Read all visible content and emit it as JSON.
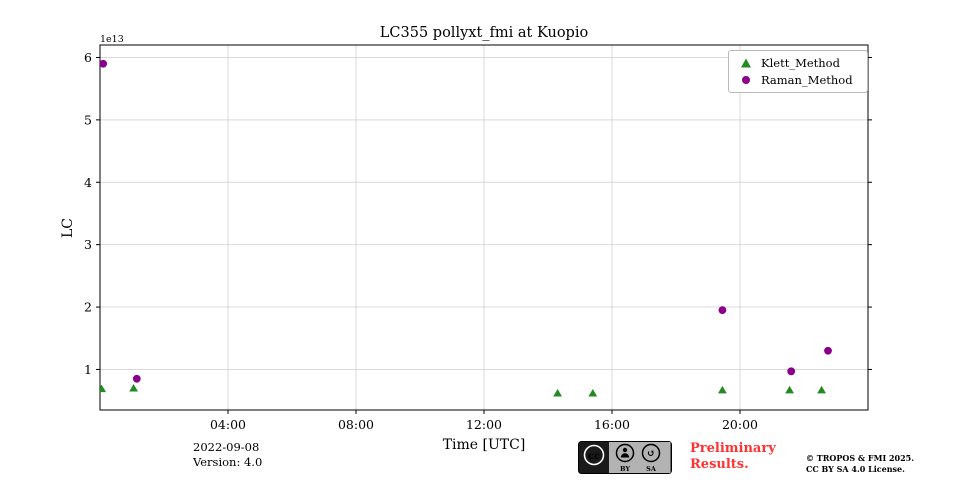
{
  "chart_data": {
    "type": "scatter",
    "title": "LC355 pollyxt_fmi at Kuopio",
    "xlabel": "Time [UTC]",
    "ylabel": "LC",
    "y_offset_label": "1e13",
    "grid": true,
    "legend_position": "upper right",
    "xlim_hours": [
      0,
      24
    ],
    "ylim": [
      0.35,
      6.2
    ],
    "x_ticks": [
      {
        "hour": 4,
        "label": "04:00"
      },
      {
        "hour": 8,
        "label": "08:00"
      },
      {
        "hour": 12,
        "label": "12:00"
      },
      {
        "hour": 16,
        "label": "16:00"
      },
      {
        "hour": 20,
        "label": "20:00"
      }
    ],
    "y_ticks": [
      1,
      2,
      3,
      4,
      5,
      6
    ],
    "series": [
      {
        "name": "Klett_Method",
        "marker": "triangle",
        "color": "#228B22",
        "points": [
          [
            0.05,
            0.69
          ],
          [
            1.05,
            0.7
          ],
          [
            14.3,
            0.62
          ],
          [
            15.4,
            0.62
          ],
          [
            19.45,
            0.67
          ],
          [
            21.55,
            0.67
          ],
          [
            22.55,
            0.67
          ]
        ]
      },
      {
        "name": "Raman_Method",
        "marker": "circle",
        "color": "#8B008B",
        "points": [
          [
            0.1,
            5.9
          ],
          [
            1.15,
            0.85
          ],
          [
            19.45,
            1.95
          ],
          [
            21.6,
            0.97
          ],
          [
            22.75,
            1.3
          ]
        ]
      }
    ]
  },
  "footer": {
    "date": "2022-09-08",
    "version": "Version: 4.0",
    "preliminary_line1": "Preliminary",
    "preliminary_line2": "Results.",
    "copyright_line1": "© TROPOS & FMI 2025.",
    "copyright_line2": "CC BY SA 4.0 License.",
    "license_badge": {
      "cc": "cc",
      "by": "BY",
      "sa": "SA"
    }
  },
  "colors": {
    "klett_green": "#228B22",
    "raman_purple": "#8B008B",
    "preliminary_red": "#ff3333",
    "grid": "#d9d9d9",
    "spine": "#000000"
  }
}
